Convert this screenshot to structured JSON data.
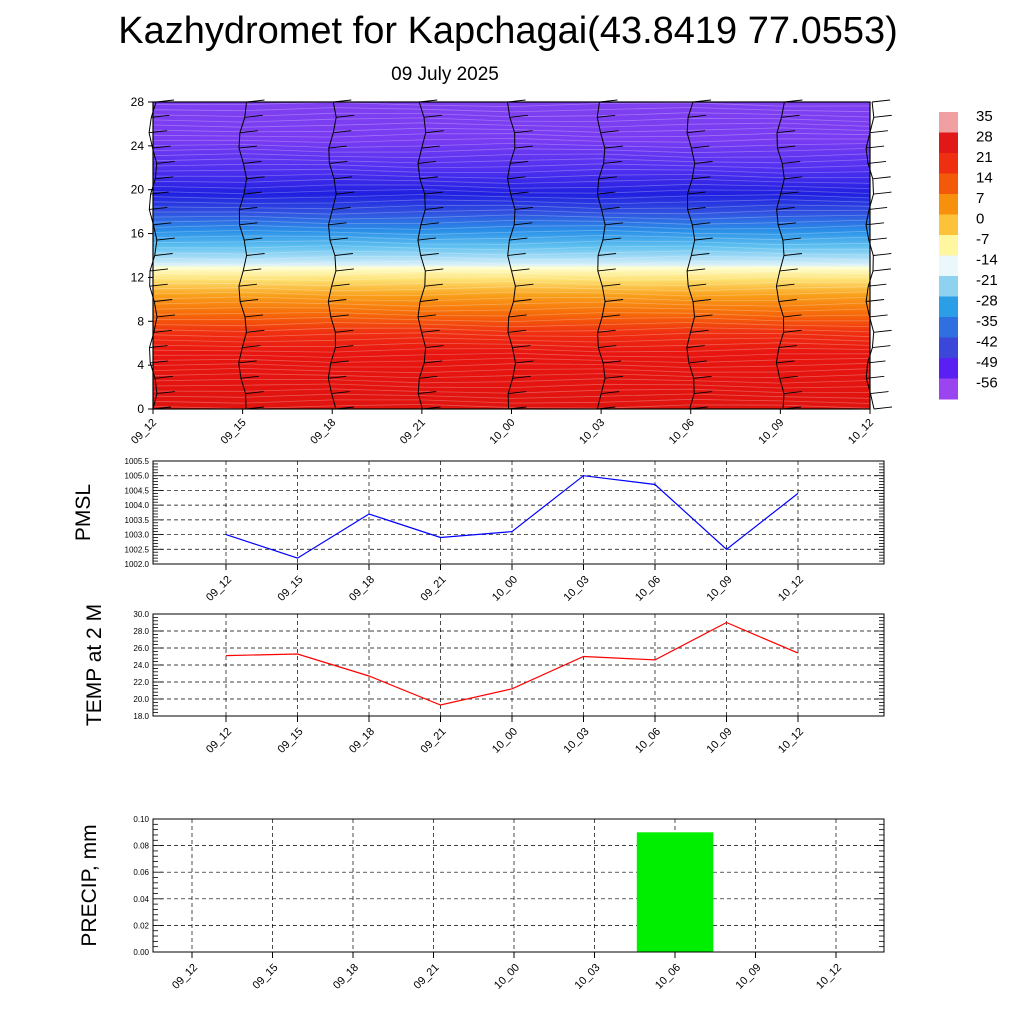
{
  "header": {
    "title": "Kazhydromet for Kapchagai(43.8419 77.0553)",
    "date": "09 July 2025"
  },
  "chart_data": [
    {
      "type": "heatmap",
      "description": "Upper-air temperature cross-section with wind barbs",
      "x_labels": [
        "09_12",
        "09_15",
        "09_18",
        "09_21",
        "10_00",
        "10_03",
        "10_06",
        "10_09",
        "10_12"
      ],
      "y_ticks": [
        "0",
        "4",
        "8",
        "12",
        "16",
        "20",
        "24",
        "28"
      ],
      "ylim": [
        0,
        28
      ],
      "colorbar": {
        "labels": [
          "35",
          "28",
          "21",
          "14",
          "7",
          "0",
          "-7",
          "-14",
          "-21",
          "-28",
          "-35",
          "-42",
          "-49",
          "-56"
        ],
        "levels": [
          35,
          28,
          21,
          14,
          7,
          0,
          -7,
          -14,
          -21,
          -28,
          -35,
          -42,
          -49,
          -56
        ],
        "colors": [
          "#f0a0a0",
          "#e21818",
          "#ee2f10",
          "#f25a0a",
          "#f7900c",
          "#fbc23a",
          "#fff6a0",
          "#eaf7fb",
          "#8ed2f0",
          "#2a9fe8",
          "#2f6fe0",
          "#3b47d8",
          "#5a1ff2",
          "#9b45f0"
        ]
      },
      "temperature_by_level": {
        "levels": [
          0,
          2,
          4,
          6,
          8,
          10,
          12,
          13,
          14,
          16,
          18,
          20,
          22,
          24,
          26,
          28
        ],
        "values": [
          26,
          27,
          26,
          22,
          15,
          8,
          0,
          -14,
          -28,
          -38,
          -46,
          -53,
          -60,
          -57,
          -50,
          -48
        ]
      }
    },
    {
      "type": "line",
      "ylabel": "PMSL",
      "x": [
        "09_12",
        "09_15",
        "09_18",
        "09_21",
        "10_00",
        "10_03",
        "10_06",
        "10_09",
        "10_12"
      ],
      "series": [
        {
          "values": [
            1003.0,
            1002.2,
            1003.7,
            1002.9,
            1003.1,
            1005.0,
            1004.7,
            1002.5,
            1004.4
          ],
          "color": "#0000ff"
        }
      ],
      "ylim": [
        1002.0,
        1005.5
      ],
      "y_ticks": [
        "1002.0",
        "1002.5",
        "1003.0",
        "1003.5",
        "1004.0",
        "1004.5",
        "1005.0",
        "1005.5"
      ],
      "grid": true
    },
    {
      "type": "line",
      "ylabel": "TEMP at 2 M",
      "x": [
        "09_12",
        "09_15",
        "09_18",
        "09_21",
        "10_00",
        "10_03",
        "10_06",
        "10_09",
        "10_12"
      ],
      "series": [
        {
          "values": [
            25.1,
            25.3,
            22.7,
            19.3,
            21.2,
            25.0,
            24.6,
            29.0,
            25.4
          ],
          "color": "#ff0000"
        }
      ],
      "ylim": [
        18.0,
        30.0
      ],
      "y_ticks": [
        "18.0",
        "20.0",
        "22.0",
        "24.0",
        "26.0",
        "28.0",
        "30.0"
      ],
      "grid": true
    },
    {
      "type": "bar",
      "ylabel": "PRECIP, mm",
      "categories": [
        "09_12",
        "09_15",
        "09_18",
        "09_21",
        "10_00",
        "10_03",
        "10_06",
        "10_09",
        "10_12"
      ],
      "values": [
        0,
        0,
        0,
        0,
        0,
        0,
        0.09,
        0,
        0
      ],
      "color": "#00ee00",
      "ylim": [
        0,
        0.1
      ],
      "y_ticks": [
        "0.00",
        "0.02",
        "0.04",
        "0.06",
        "0.08",
        "0.10"
      ],
      "grid": true
    }
  ]
}
